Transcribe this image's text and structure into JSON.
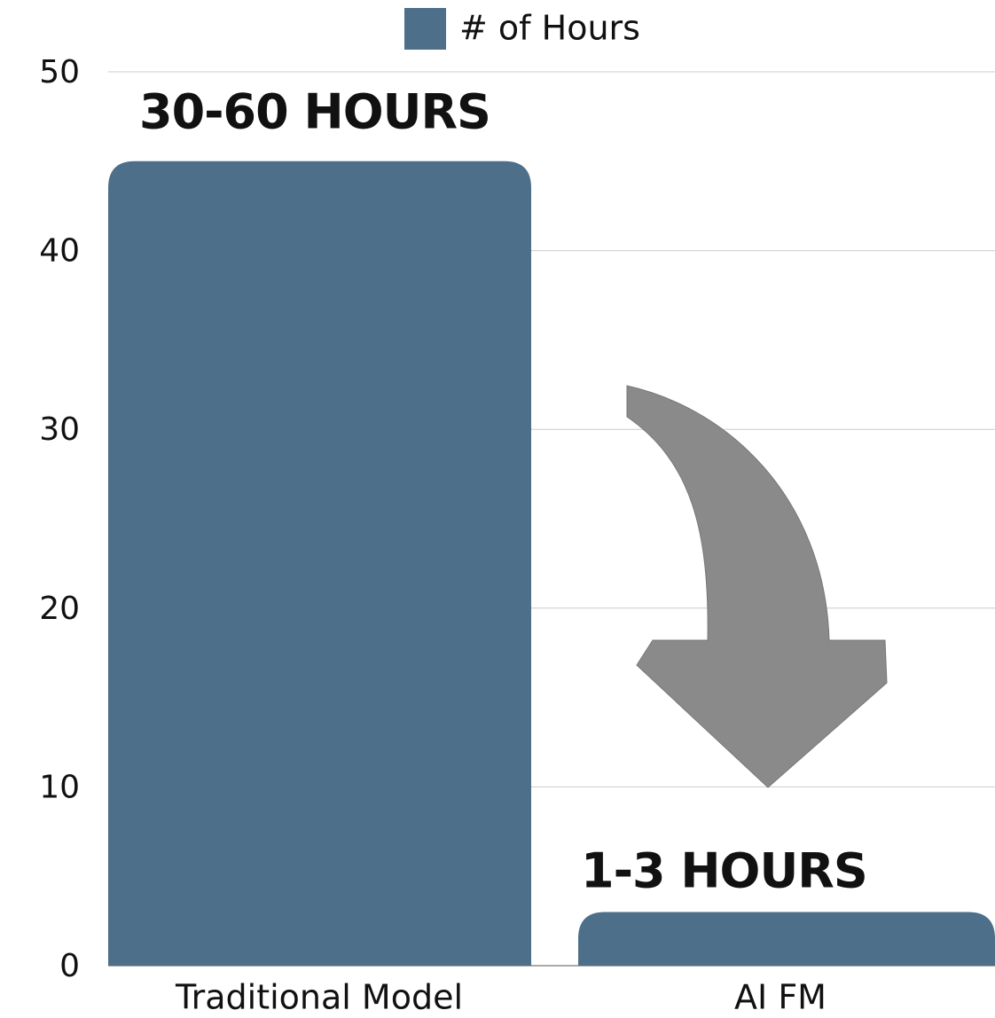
{
  "chart_data": {
    "type": "bar",
    "categories": [
      "Traditional Model",
      "AI FM"
    ],
    "series": [
      {
        "name": "# of Hours",
        "color": "#4e6f89",
        "values": [
          45,
          3
        ]
      }
    ],
    "annotations": [
      "30-60 HOURS",
      "1-3 HOURS"
    ],
    "ylim": [
      0,
      50
    ],
    "yticks": [
      0,
      10,
      20,
      30,
      40,
      50
    ],
    "grid": true,
    "legend": "top"
  }
}
